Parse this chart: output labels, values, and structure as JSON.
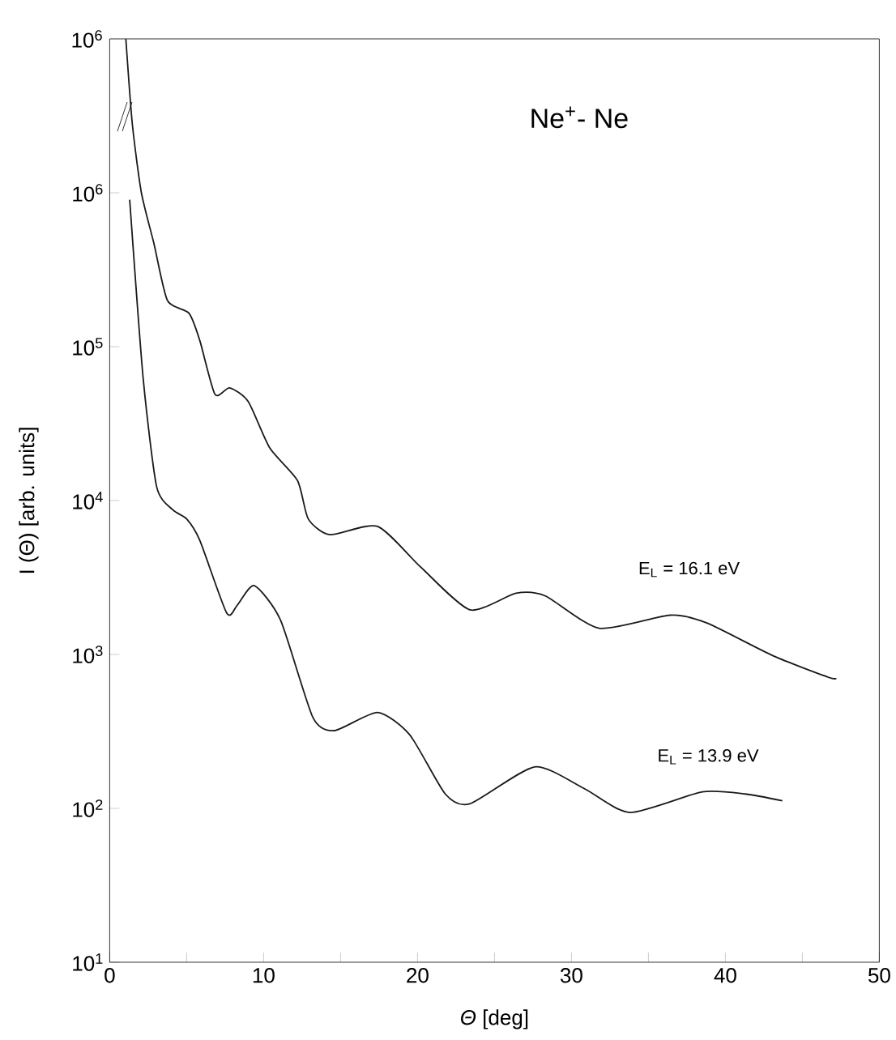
{
  "chart_data": {
    "type": "line",
    "title": "Ne$^{+}$- Ne",
    "xlabel": "*Θ* [deg]",
    "ylabel": "I (Θ) [arb. units]",
    "log": "y",
    "xlim": [
      0,
      50
    ],
    "ylim": [
      10,
      10000000
    ],
    "xticks": [
      0,
      {
        "value": 5,
        "label": null
      },
      10,
      {
        "value": 15,
        "label": null
      },
      20,
      {
        "value": 25,
        "label": null
      },
      30,
      {
        "value": 35,
        "label": null
      },
      40,
      {
        "value": 45,
        "label": null
      },
      50
    ],
    "yticks": [
      {
        "value": 10,
        "label": "10$^{1}$"
      },
      {
        "value": 100,
        "label": "10$^{2}$"
      },
      {
        "value": 1000,
        "label": "10$^{3}$"
      },
      {
        "value": 10000,
        "label": "10$^{4}$"
      },
      {
        "value": 100000,
        "label": "10$^{5}$"
      },
      {
        "value": 1000000,
        "label": "10$^{6}$"
      }
    ],
    "annotations": [
      "10$^{6}$"
    ],
    "grid": false,
    "legend": false,
    "marker": "none",
    "line_style": "solid",
    "series": [
      {
        "name": "E$_{L}$ = 16.1 eV",
        "color": "#1a1a1a",
        "x": [
          1.05,
          1.47,
          2.06,
          2.87,
          3.75,
          5.15,
          5.85,
          6.84,
          7.79,
          9.0,
          10.4,
          12.2,
          12.9,
          14.3,
          17.4,
          20.2,
          23.4,
          26.4,
          28.3,
          31.8,
          36.4,
          38.8,
          43.1,
          46.7,
          47.2
        ],
        "values": [
          10000000,
          2800000,
          1000000,
          470000,
          200000,
          165000,
          110000,
          49000,
          54000,
          44000,
          22000,
          13500,
          7600,
          6000,
          6800,
          3700,
          1950,
          2500,
          2400,
          1480,
          1800,
          1600,
          980,
          710,
          700
        ]
      },
      {
        "name": "E$_{L}$ = 13.9 eV",
        "color": "#1a1a1a",
        "x": [
          1.3,
          2.17,
          3.05,
          4.1,
          5.0,
          5.86,
          7.6,
          8.3,
          9.4,
          11.1,
          13.2,
          14.6,
          17.4,
          19.5,
          21.8,
          23.4,
          27.6,
          30.8,
          33.8,
          38.5,
          41.3,
          43.7
        ],
        "values": [
          900000,
          63000,
          12300,
          8700,
          7600,
          5500,
          1860,
          2100,
          2800,
          1670,
          390,
          320,
          420,
          300,
          124,
          107,
          186,
          135,
          94,
          128,
          124,
          112
        ]
      }
    ]
  }
}
